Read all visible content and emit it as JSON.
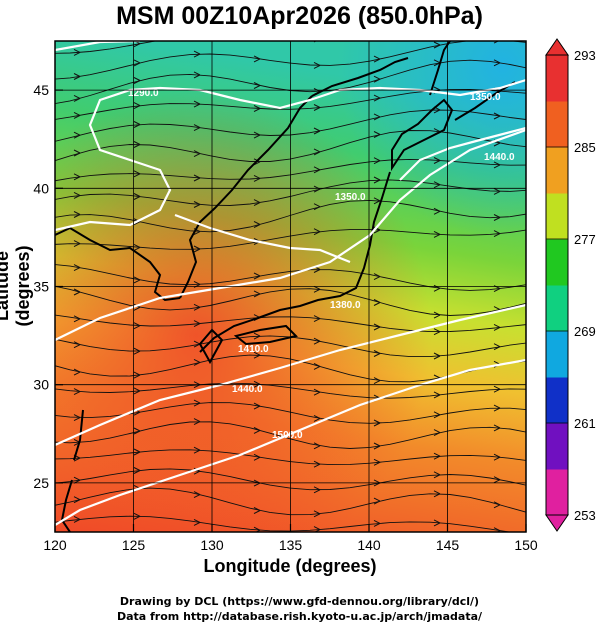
{
  "title": "MSM 00Z10Apr2026 (850.0hPa)",
  "x_axis": {
    "label": "Longitude (degrees)",
    "ticks": [
      "120",
      "125",
      "130",
      "135",
      "140",
      "145",
      "150"
    ],
    "range": [
      120,
      150
    ]
  },
  "y_axis": {
    "label": "Latitude  (degrees)",
    "ticks": [
      "25",
      "30",
      "35",
      "40",
      "45"
    ],
    "range": [
      22.5,
      47.5
    ]
  },
  "colorbar": {
    "ticks": [
      "293",
      "285",
      "277",
      "269",
      "261",
      "253"
    ],
    "range": [
      253,
      293
    ],
    "colors": [
      "#e0209f",
      "#7010c0",
      "#1030c8",
      "#10a8e0",
      "#10d080",
      "#20c820",
      "#c0e020",
      "#f0a020",
      "#f06020",
      "#e83030"
    ]
  },
  "contours": {
    "labels": [
      "1290.0",
      "1350.0",
      "1440.0",
      "1350.0",
      "1410.0",
      "1440.0",
      "1500.0",
      "1380.0"
    ]
  },
  "credits": {
    "line1": "Drawing by DCL (https://www.gfd-dennou.org/library/dcl/)",
    "line2": "Data from http://database.rish.kyoto-u.ac.jp/arch/jmadata/"
  },
  "colors": {
    "background": "#ffffff",
    "contour": "#ffffff",
    "coastline": "#000000",
    "streamline": "#111111"
  }
}
